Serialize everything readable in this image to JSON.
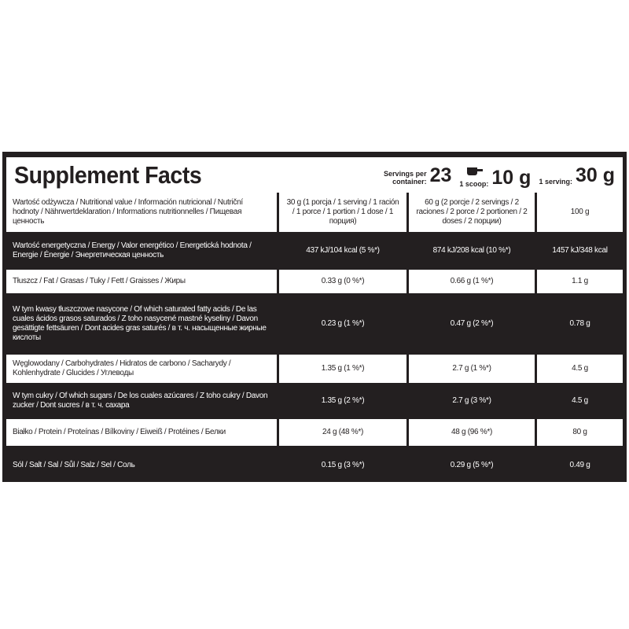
{
  "title": "Supplement Facts",
  "servings": {
    "label": "Servings per container:",
    "value": "23",
    "scoop_label": "1 scoop:",
    "scoop_value": "10 g",
    "serving_label": "1 serving:",
    "serving_value": "30 g"
  },
  "rows": [
    {
      "label": "Wartość odżywcza / Nutritional value / Información nutricional / Nutriční hodnoty / Nährwertdeklaration / Informations nutritionnelles / Пищевая ценность",
      "v1": "30 g (1 porcja / 1 serving / 1 ración / 1 porce / 1 portion / 1 dose / 1 порция)",
      "v2": "60 g (2 porcje / 2 servings / 2 raciones / 2 porce / 2 portionen / 2 doses / 2 порции)",
      "v3": "100 g"
    },
    {
      "label": "Wartość energetyczna / Energy / Valor energético / Energetická hodnota / Energie / Énergie / Энергетическая ценность",
      "v1": "437 kJ/104 kcal (5 %*)",
      "v2": "874 kJ/208 kcal (10 %*)",
      "v3": "1457 kJ/348 kcal"
    },
    {
      "label": "Tłuszcz / Fat / Grasas / Tuky / Fett / Graisses / Жиры",
      "v1": "0.33 g (0 %*)",
      "v2": "0.66 g (1 %*)",
      "v3": "1.1 g"
    },
    {
      "label": "W tym kwasy tłuszczowe nasycone / Of which saturated fatty acids / De las cuales ácidos grasos saturados / Z toho nasycené mastné kyseliny / Davon gesättigte fettsäuren / Dont acides gras saturés / в т. ч. насыщенные жирные кислоты",
      "v1": "0.23 g (1 %*)",
      "v2": "0.47 g (2 %*)",
      "v3": "0.78 g"
    },
    {
      "label": "Węglowodany / Carbohydrates / Hidratos de carbono / Sacharydy / Kohlenhydrate / Glucides / Углеводы",
      "v1": "1.35 g (1 %*)",
      "v2": "2.7 g (1 %*)",
      "v3": "4.5 g"
    },
    {
      "label": "W tym cukry / Of which sugars / De los cuales azúcares / Z toho cukry / Davon zucker / Dont sucres / в т. ч.  сахара",
      "v1": "1.35 g (2 %*)",
      "v2": "2.7 g (3 %*)",
      "v3": "4.5 g"
    },
    {
      "label": "Białko / Protein / Proteínas / Bílkoviny / Eiweiß / Protéines / Белки",
      "v1": "24 g (48 %*)",
      "v2": "48 g (96 %*)",
      "v3": "80 g"
    },
    {
      "label": "Sól / Salt / Sal / Sůl / Salz / Sel / Соль",
      "v1": "0.15 g (3 %*)",
      "v2": "0.29 g (5 %*)",
      "v3": "0.49 g"
    }
  ]
}
